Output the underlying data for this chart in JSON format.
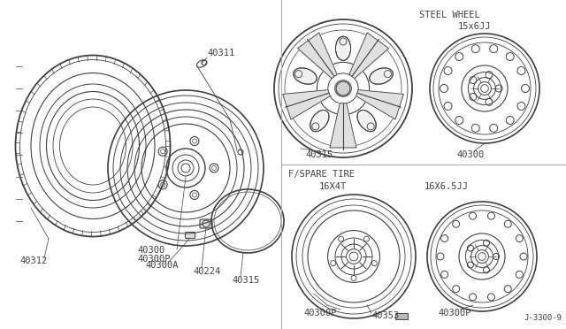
{
  "bg_color": "#ffffff",
  "line_color": "#404040",
  "gray_line": "#707070",
  "labels": {
    "steel_wheel": "STEEL WHEEL",
    "spare_tire": "F/SPARE TIRE",
    "size_15x6jj": "15x6JJ",
    "size_16x4t": "16X4T",
    "size_16x65jj": "16X6.5JJ",
    "part_40311": "40311",
    "part_40312": "40312",
    "part_40300": "40300",
    "part_40300p": "40300P",
    "part_40300a": "40300A",
    "part_40315": "40315",
    "part_40224": "40224",
    "part_40353": "40353",
    "diagram_num": "J-3300-9"
  },
  "font_size": 7.5,
  "font_size_small": 6.5,
  "font_size_section": 7.5
}
